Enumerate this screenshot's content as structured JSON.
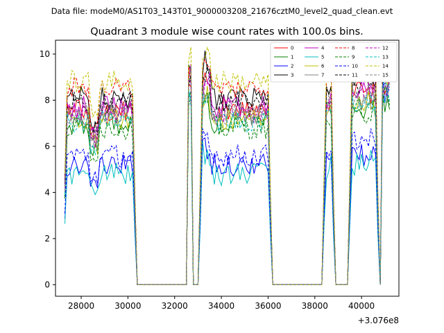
{
  "chart_data": {
    "type": "line",
    "suptitle": "Data file: modeM0/AS1T03_143T01_9000003208_21676cztM0_level2_quad_clean.evt",
    "title": "Quadrant 3 module wise count rates with 100.0s bins.",
    "xlabel": "",
    "ylabel": "",
    "x_offset_label": "+3.076e8",
    "xlim": [
      26900,
      41600
    ],
    "ylim": [
      -0.5,
      10.6
    ],
    "x_ticks": [
      28000,
      30000,
      32000,
      34000,
      36000,
      38000,
      40000
    ],
    "x_tick_labels": [
      "28000",
      "30000",
      "32000",
      "34000",
      "36000",
      "38000",
      "40000"
    ],
    "y_ticks": [
      0,
      2,
      4,
      6,
      8,
      10
    ],
    "y_tick_labels": [
      "0",
      "2",
      "4",
      "6",
      "8",
      "10"
    ],
    "grid": false,
    "legend_position": "top-right",
    "segments": [
      {
        "x0": 27300,
        "x1": 30300,
        "active": true
      },
      {
        "x0": 30400,
        "x1": 32500,
        "active": false
      },
      {
        "x0": 32600,
        "x1": 32700,
        "active": true
      },
      {
        "x0": 32800,
        "x1": 33000,
        "active": false
      },
      {
        "x0": 33100,
        "x1": 36100,
        "active": true
      },
      {
        "x0": 36200,
        "x1": 38300,
        "active": false
      },
      {
        "x0": 38400,
        "x1": 38800,
        "active": true
      },
      {
        "x0": 38900,
        "x1": 39400,
        "active": false
      },
      {
        "x0": 39500,
        "x1": 40700,
        "active": true
      },
      {
        "x0": 40800,
        "x1": 40800,
        "active": false
      },
      {
        "x0": 40900,
        "x1": 41200,
        "active": true
      }
    ],
    "series": [
      {
        "name": "0",
        "color": "#ff0000",
        "dash": false,
        "mean": 7.6,
        "peak": 9.0
      },
      {
        "name": "1",
        "color": "#008000",
        "dash": false,
        "mean": 7.0,
        "peak": 8.3
      },
      {
        "name": "2",
        "color": "#0000ff",
        "dash": false,
        "mean": 5.2,
        "peak": 8.9
      },
      {
        "name": "3",
        "color": "#000000",
        "dash": false,
        "mean": 8.1,
        "peak": 10.0
      },
      {
        "name": "4",
        "color": "#bf00bf",
        "dash": false,
        "mean": 7.7,
        "peak": 9.3
      },
      {
        "name": "5",
        "color": "#00bfbf",
        "dash": false,
        "mean": 4.8,
        "peak": 8.6
      },
      {
        "name": "6",
        "color": "#bfbf00",
        "dash": false,
        "mean": 7.2,
        "peak": 9.0
      },
      {
        "name": "7",
        "color": "#808080",
        "dash": false,
        "mean": 7.3,
        "peak": 9.0
      },
      {
        "name": "8",
        "color": "#ff0000",
        "dash": true,
        "mean": 8.5,
        "peak": 9.8
      },
      {
        "name": "9",
        "color": "#008000",
        "dash": true,
        "mean": 6.8,
        "peak": 8.5
      },
      {
        "name": "10",
        "color": "#0000ff",
        "dash": true,
        "mean": 5.6,
        "peak": 8.7
      },
      {
        "name": "11",
        "color": "#000000",
        "dash": true,
        "mean": 7.9,
        "peak": 9.6
      },
      {
        "name": "12",
        "color": "#bf00bf",
        "dash": true,
        "mean": 7.5,
        "peak": 9.2
      },
      {
        "name": "13",
        "color": "#00bfbf",
        "dash": true,
        "mean": 7.1,
        "peak": 8.9
      },
      {
        "name": "14",
        "color": "#bfbf00",
        "dash": true,
        "mean": 8.8,
        "peak": 10.1
      },
      {
        "name": "15",
        "color": "#808080",
        "dash": true,
        "mean": 7.4,
        "peak": 9.1
      }
    ]
  }
}
